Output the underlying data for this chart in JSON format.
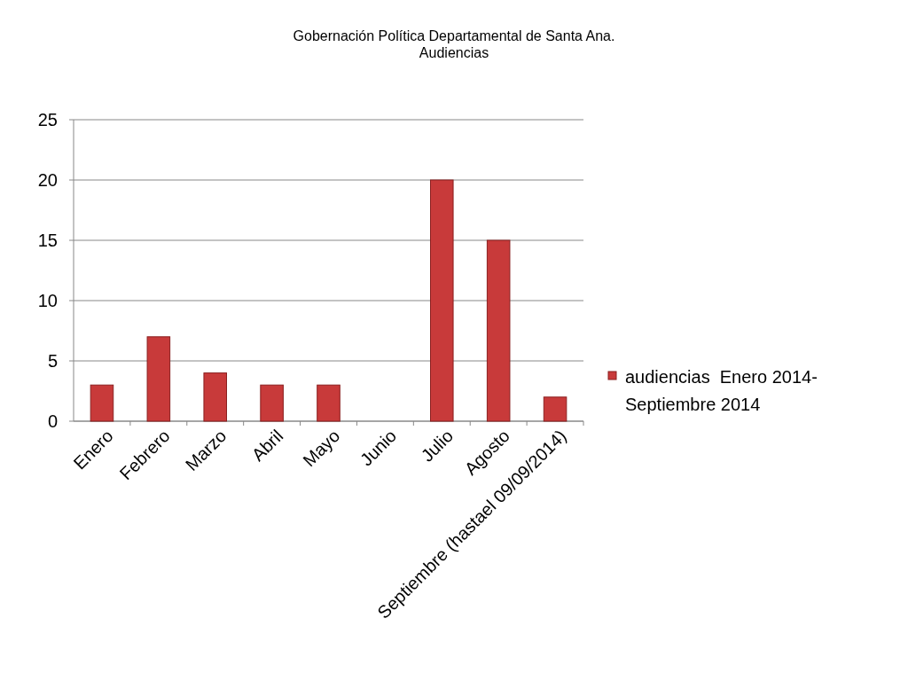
{
  "chart_data": {
    "type": "bar",
    "title": "Gobernación Política Departamental de Santa Ana.",
    "subtitle": "Audiencias",
    "categories": [
      "Enero",
      "Febrero",
      "Marzo",
      "Abril",
      "Mayo",
      "Junio",
      "Julio",
      "Agosto",
      "Septiembre (hastael 09/09/2014)"
    ],
    "series": [
      {
        "name": "audiencias  Enero 2014-Septiembre 2014",
        "color": "#c83a3a",
        "values": [
          3,
          7,
          4,
          3,
          3,
          0,
          20,
          15,
          2
        ]
      }
    ],
    "ylim": [
      0,
      25
    ],
    "yticks": [
      0,
      5,
      10,
      15,
      20,
      25
    ],
    "grid": "y",
    "legend": "right"
  }
}
